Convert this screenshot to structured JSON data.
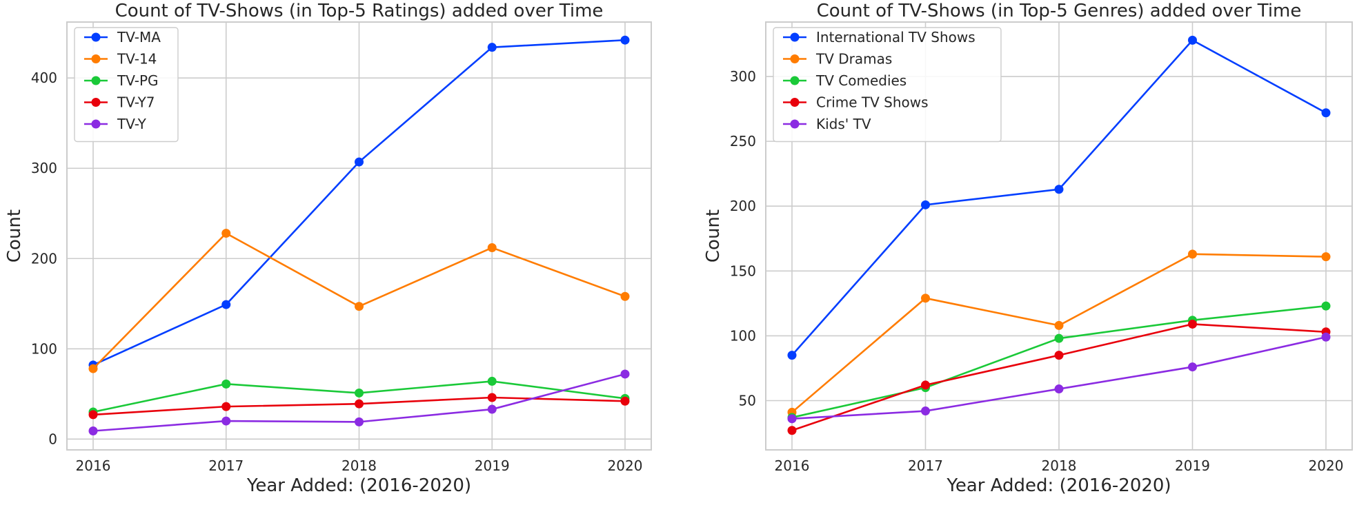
{
  "chart_data": [
    {
      "type": "line",
      "title": "Count of TV-Shows (in Top-5 Ratings) added over Time",
      "xlabel": "Year Added: (2016-2020)",
      "ylabel": "Count",
      "x": [
        2016,
        2017,
        2018,
        2019,
        2020
      ],
      "x_ticks": [
        "2016",
        "2017",
        "2018",
        "2019",
        "2020"
      ],
      "y_ticks": [
        "0",
        "100",
        "200",
        "300",
        "400"
      ],
      "y_tick_values": [
        0,
        100,
        200,
        300,
        400
      ],
      "ylim": [
        -12,
        462
      ],
      "grid": true,
      "legend_position": "top-left",
      "series": [
        {
          "name": "TV-MA",
          "color": "#023eff",
          "values": [
            82,
            149,
            307,
            434,
            442
          ]
        },
        {
          "name": "TV-14",
          "color": "#ff7c00",
          "values": [
            78,
            228,
            147,
            212,
            158
          ]
        },
        {
          "name": "TV-PG",
          "color": "#1ac938",
          "values": [
            30,
            61,
            51,
            64,
            45
          ]
        },
        {
          "name": "TV-Y7",
          "color": "#e8000b",
          "values": [
            27,
            36,
            39,
            46,
            42
          ]
        },
        {
          "name": "TV-Y",
          "color": "#8b2be2",
          "values": [
            9,
            20,
            19,
            33,
            72
          ]
        }
      ]
    },
    {
      "type": "line",
      "title": "Count of TV-Shows (in Top-5 Genres) added over Time",
      "xlabel": "Year Added: (2016-2020)",
      "ylabel": "Count",
      "x": [
        2016,
        2017,
        2018,
        2019,
        2020
      ],
      "x_ticks": [
        "2016",
        "2017",
        "2018",
        "2019",
        "2020"
      ],
      "y_ticks": [
        "50",
        "100",
        "150",
        "200",
        "250",
        "300"
      ],
      "y_tick_values": [
        50,
        100,
        150,
        200,
        250,
        300
      ],
      "ylim": [
        12,
        342
      ],
      "grid": true,
      "legend_position": "top-left",
      "series": [
        {
          "name": "International TV Shows",
          "color": "#023eff",
          "values": [
            85,
            201,
            213,
            328,
            272
          ]
        },
        {
          "name": "TV Dramas",
          "color": "#ff7c00",
          "values": [
            41,
            129,
            108,
            163,
            161
          ]
        },
        {
          "name": "TV Comedies",
          "color": "#1ac938",
          "values": [
            37,
            60,
            98,
            112,
            123
          ]
        },
        {
          "name": "Crime TV Shows",
          "color": "#e8000b",
          "values": [
            27,
            62,
            85,
            109,
            103
          ]
        },
        {
          "name": "Kids' TV",
          "color": "#8b2be2",
          "values": [
            36,
            42,
            59,
            76,
            99
          ]
        }
      ]
    }
  ]
}
